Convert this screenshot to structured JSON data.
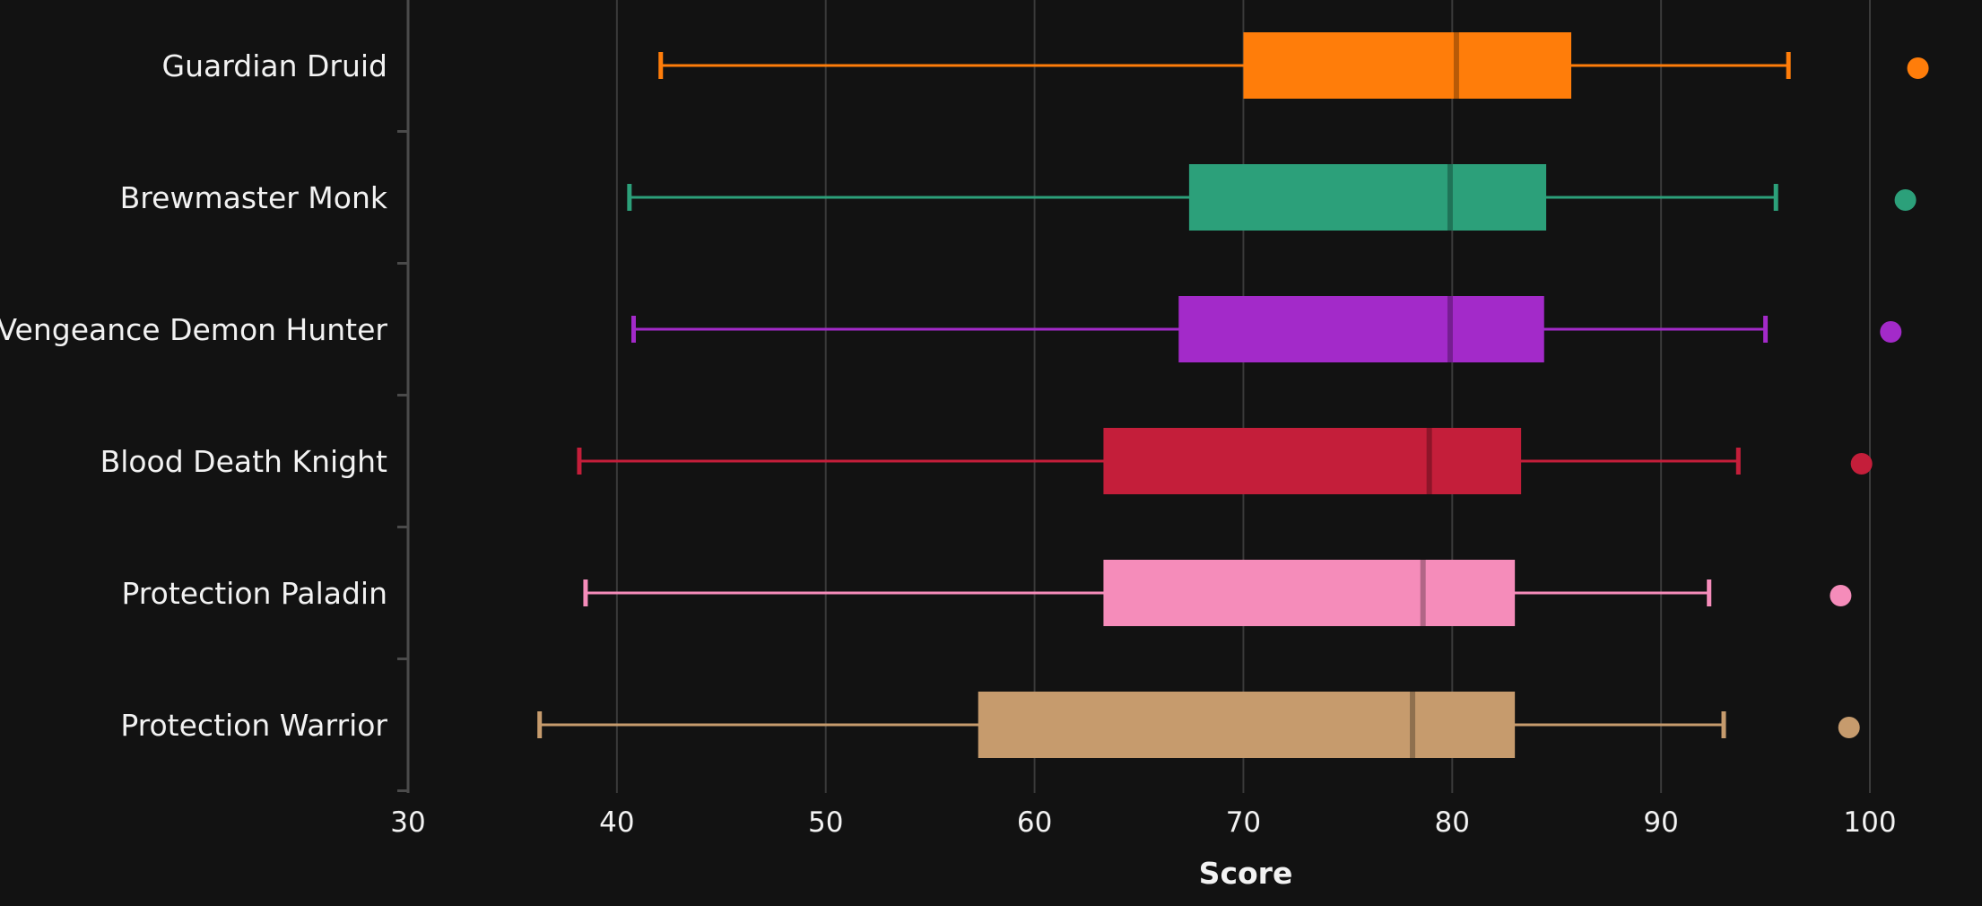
{
  "chart_data": {
    "type": "box",
    "orientation": "horizontal",
    "title": "",
    "xlabel": "Score",
    "ylabel": "",
    "xlim": [
      30,
      100
    ],
    "xticks": [
      30,
      40,
      50,
      60,
      70,
      80,
      90,
      100
    ],
    "grid": "vertical",
    "legend": "none",
    "series": [
      {
        "label": "Guardian Druid",
        "color": "#ff7d0a",
        "min": 42.1,
        "q1": 70.0,
        "median": 80.2,
        "q3": 85.7,
        "max": 96.1,
        "marker": 102.3
      },
      {
        "label": "Brewmaster Monk",
        "color": "#2ca07a",
        "min": 40.6,
        "q1": 67.4,
        "median": 79.9,
        "q3": 84.5,
        "max": 95.5,
        "marker": 101.7
      },
      {
        "label": "Vengeance Demon Hunter",
        "color": "#a32ac9",
        "min": 40.8,
        "q1": 66.9,
        "median": 79.9,
        "q3": 84.4,
        "max": 95.0,
        "marker": 101.0
      },
      {
        "label": "Blood Death Knight",
        "color": "#c41e3a",
        "min": 38.2,
        "q1": 63.3,
        "median": 78.9,
        "q3": 83.3,
        "max": 93.7,
        "marker": 99.6
      },
      {
        "label": "Protection Paladin",
        "color": "#f58cba",
        "min": 38.5,
        "q1": 63.3,
        "median": 78.6,
        "q3": 83.0,
        "max": 92.3,
        "marker": 98.6
      },
      {
        "label": "Protection Warrior",
        "color": "#c69b6d",
        "min": 36.3,
        "q1": 57.3,
        "median": 78.1,
        "q3": 83.0,
        "max": 93.0,
        "marker": 99.0
      }
    ]
  }
}
